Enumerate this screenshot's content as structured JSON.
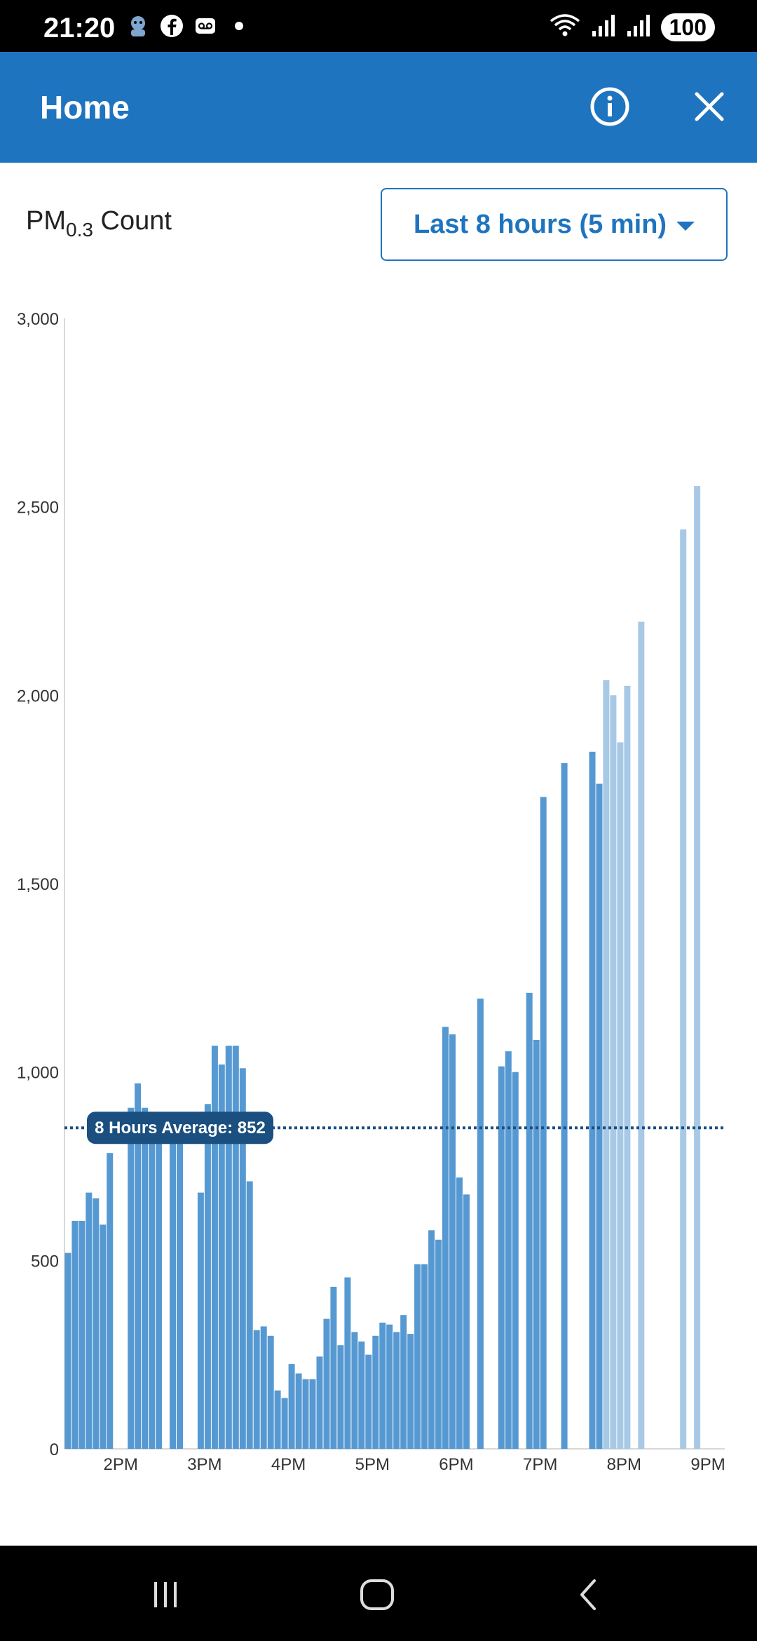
{
  "status_bar": {
    "time": "21:20",
    "battery": "100",
    "left_icons": [
      "avatar-icon",
      "facebook-icon",
      "voicemail-icon",
      "dot-icon"
    ],
    "right_icons": [
      "wifi-icon",
      "signal-icon",
      "signal-icon"
    ]
  },
  "app_bar": {
    "title": "Home",
    "info_icon": "info-icon",
    "close_icon": "close-icon",
    "color": "#1f74bf"
  },
  "metric": {
    "label": "PM",
    "subscript": "0.3",
    "suffix": "Count"
  },
  "range_selector": {
    "selected": "Last 8 hours (5 min)"
  },
  "average": {
    "label": "8 Hours Average: 852",
    "value": 852
  },
  "chart_data": {
    "type": "bar",
    "ylim": [
      0,
      3000
    ],
    "y_ticks": [
      {
        "value": 0,
        "label": "0"
      },
      {
        "value": 500,
        "label": "500"
      },
      {
        "value": 1000,
        "label": "1,000"
      },
      {
        "value": 1500,
        "label": "1,500"
      },
      {
        "value": 2000,
        "label": "2,000"
      },
      {
        "value": 2500,
        "label": "2,500"
      },
      {
        "value": 3000,
        "label": "3,000"
      }
    ],
    "x_ticks": [
      {
        "hour": 14,
        "label": "2PM"
      },
      {
        "hour": 15,
        "label": "3PM"
      },
      {
        "hour": 16,
        "label": "4PM"
      },
      {
        "hour": 17,
        "label": "5PM"
      },
      {
        "hour": 18,
        "label": "6PM"
      },
      {
        "hour": 19,
        "label": "7PM"
      },
      {
        "hour": 20,
        "label": "8PM"
      },
      {
        "hour": 21,
        "label": "9PM"
      }
    ],
    "x_range_hours": [
      13.33,
      21.2
    ],
    "bar_minutes": 5,
    "colors": {
      "measured": "#5699d2",
      "recent": "#a7c9e6",
      "average_line": "#1a4f80"
    },
    "bars": [
      {
        "time": "13:20",
        "value": 520
      },
      {
        "time": "13:25",
        "value": 605
      },
      {
        "time": "13:30",
        "value": 605
      },
      {
        "time": "13:35",
        "value": 680
      },
      {
        "time": "13:40",
        "value": 665
      },
      {
        "time": "13:45",
        "value": 595
      },
      {
        "time": "13:50",
        "value": 785
      },
      {
        "time": "14:05",
        "value": 905
      },
      {
        "time": "14:10",
        "value": 970
      },
      {
        "time": "14:15",
        "value": 905
      },
      {
        "time": "14:20",
        "value": 870
      },
      {
        "time": "14:25",
        "value": 870
      },
      {
        "time": "14:35",
        "value": 855
      },
      {
        "time": "14:40",
        "value": 855
      },
      {
        "time": "14:55",
        "value": 680
      },
      {
        "time": "15:00",
        "value": 915
      },
      {
        "time": "15:05",
        "value": 1070
      },
      {
        "time": "15:10",
        "value": 1020
      },
      {
        "time": "15:15",
        "value": 1070
      },
      {
        "time": "15:20",
        "value": 1070
      },
      {
        "time": "15:25",
        "value": 1010
      },
      {
        "time": "15:30",
        "value": 710
      },
      {
        "time": "15:35",
        "value": 315
      },
      {
        "time": "15:40",
        "value": 325
      },
      {
        "time": "15:45",
        "value": 300
      },
      {
        "time": "15:50",
        "value": 155
      },
      {
        "time": "15:55",
        "value": 135
      },
      {
        "time": "16:00",
        "value": 225
      },
      {
        "time": "16:05",
        "value": 200
      },
      {
        "time": "16:10",
        "value": 185
      },
      {
        "time": "16:15",
        "value": 185
      },
      {
        "time": "16:20",
        "value": 245
      },
      {
        "time": "16:25",
        "value": 345
      },
      {
        "time": "16:30",
        "value": 430
      },
      {
        "time": "16:35",
        "value": 275
      },
      {
        "time": "16:40",
        "value": 455
      },
      {
        "time": "16:45",
        "value": 310
      },
      {
        "time": "16:50",
        "value": 285
      },
      {
        "time": "16:55",
        "value": 250
      },
      {
        "time": "17:00",
        "value": 300
      },
      {
        "time": "17:05",
        "value": 335
      },
      {
        "time": "17:10",
        "value": 330
      },
      {
        "time": "17:15",
        "value": 310
      },
      {
        "time": "17:20",
        "value": 355
      },
      {
        "time": "17:25",
        "value": 305
      },
      {
        "time": "17:30",
        "value": 490
      },
      {
        "time": "17:35",
        "value": 490
      },
      {
        "time": "17:40",
        "value": 580
      },
      {
        "time": "17:45",
        "value": 555
      },
      {
        "time": "17:50",
        "value": 1120
      },
      {
        "time": "17:55",
        "value": 1100
      },
      {
        "time": "18:00",
        "value": 720
      },
      {
        "time": "18:05",
        "value": 675
      },
      {
        "time": "18:15",
        "value": 1195
      },
      {
        "time": "18:30",
        "value": 1015
      },
      {
        "time": "18:35",
        "value": 1055
      },
      {
        "time": "18:40",
        "value": 1000
      },
      {
        "time": "18:50",
        "value": 1210
      },
      {
        "time": "18:55",
        "value": 1085
      },
      {
        "time": "19:00",
        "value": 1730
      },
      {
        "time": "19:15",
        "value": 1820
      },
      {
        "time": "19:35",
        "value": 1850
      },
      {
        "time": "19:40",
        "value": 1765
      },
      {
        "time": "19:45",
        "value": 2040,
        "recent": true
      },
      {
        "time": "19:50",
        "value": 2000,
        "recent": true
      },
      {
        "time": "19:55",
        "value": 1875,
        "recent": true
      },
      {
        "time": "20:00",
        "value": 2025,
        "recent": true
      },
      {
        "time": "20:10",
        "value": 2195,
        "recent": true
      },
      {
        "time": "20:40",
        "value": 2440,
        "recent": true
      },
      {
        "time": "20:50",
        "value": 2555,
        "recent": true
      }
    ]
  },
  "nav_bar": {
    "recent_icon": "recent-apps-icon",
    "home_icon": "home-icon",
    "back_icon": "back-icon"
  }
}
